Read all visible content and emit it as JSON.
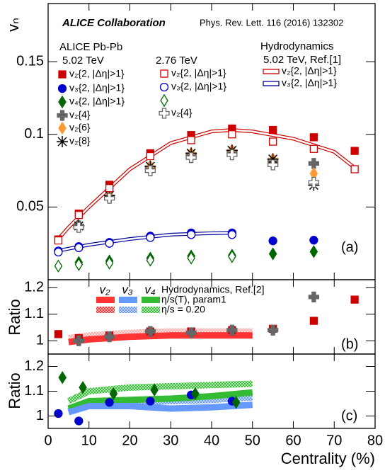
{
  "chart_data": [
    {
      "type": "scatter",
      "ylabel": "vₙ",
      "annotations": [
        "ALICE Collaboration",
        "Phys. Rev. Lett. 116 (2016) 132302",
        "ALICE Pb-Pb",
        "5.02 TeV",
        "2.76 TeV",
        "Hydrodynamics",
        "5.02 TeV, Ref.[1]",
        "(a)"
      ],
      "xlim": [
        0,
        80
      ],
      "xticks": [
        0,
        10,
        20,
        30,
        40,
        50,
        60,
        70,
        80
      ],
      "xtick_labels": false,
      "ylim": [
        0,
        0.19
      ],
      "yticks": [
        0.05,
        0.1,
        0.15
      ],
      "series": [
        {
          "name": "v₂{2, |Δη|>1}",
          "color": "#cc0000",
          "marker": "square",
          "filled": true,
          "x": [
            2.5,
            7.5,
            15,
            25,
            35,
            45,
            55,
            65,
            75
          ],
          "values": [
            0.0277,
            0.0455,
            0.0653,
            0.087,
            0.0995,
            0.104,
            0.103,
            0.098,
            0.0886
          ]
        },
        {
          "name": "v₃{2, |Δη|>1}",
          "color": "#0000cc",
          "marker": "circle",
          "filled": true,
          "x": [
            2.5,
            7.5,
            15,
            25,
            35,
            45,
            55,
            65
          ],
          "values": [
            0.0198,
            0.0228,
            0.0257,
            0.03,
            0.0322,
            0.0322,
            0.0267,
            0.0272
          ]
        },
        {
          "name": "v₄{2, |Δη|>1}",
          "color": "#006600",
          "marker": "diamond",
          "filled": true,
          "x": [
            7.5,
            15,
            25,
            35,
            45,
            55,
            65
          ],
          "values": [
            0.0119,
            0.0129,
            0.0148,
            0.0163,
            0.0168,
            0.0178,
            0.0193
          ]
        },
        {
          "name": "v₂{4}",
          "color": "#666666",
          "marker": "cross",
          "filled": true,
          "x": [
            7.5,
            15,
            25,
            35,
            45,
            55,
            65
          ],
          "values": [
            0.037,
            0.057,
            0.077,
            0.086,
            0.088,
            0.082,
            0.08
          ]
        },
        {
          "name": "v₂{6}",
          "color": "#ff9933",
          "marker": "diamond",
          "filled": true,
          "x": [
            15,
            25,
            35,
            45,
            55,
            65
          ],
          "values": [
            0.058,
            0.078,
            0.087,
            0.089,
            0.083,
            0.073
          ]
        },
        {
          "name": "v₂{8}",
          "color": "#000000",
          "marker": "star",
          "filled": true,
          "x": [
            7.5,
            15,
            25,
            35,
            45,
            55,
            65
          ],
          "values": [
            0.037,
            0.058,
            0.078,
            0.087,
            0.089,
            0.083,
            0.065
          ]
        },
        {
          "name": "v₂{2, |Δη|>1}",
          "color": "#cc0000",
          "marker": "square",
          "filled": false,
          "x": [
            2.5,
            7.5,
            15,
            25,
            35,
            45,
            55,
            65,
            75
          ],
          "values": [
            0.027,
            0.0445,
            0.063,
            0.085,
            0.096,
            0.1,
            0.095,
            0.09,
            0.076
          ]
        },
        {
          "name": "v₃{2, |Δη|>1}",
          "color": "#0000cc",
          "marker": "circle",
          "filled": false,
          "x": [
            2.5,
            7.5,
            15,
            25,
            35,
            45
          ],
          "values": [
            0.019,
            0.022,
            0.025,
            0.029,
            0.031,
            0.031
          ]
        },
        {
          "color": "#006600",
          "marker": "diamond",
          "filled": false,
          "x": [
            2.5,
            7.5,
            15,
            25,
            35,
            45
          ],
          "values": [
            0.0094,
            0.0104,
            0.0114,
            0.0134,
            0.0149,
            0.0159
          ]
        },
        {
          "name": "v₂{4}",
          "color": "#666666",
          "marker": "cross",
          "filled": false,
          "x": [
            7.5,
            15,
            25,
            35,
            45,
            55,
            65
          ],
          "values": [
            0.036,
            0.056,
            0.075,
            0.084,
            0.086,
            0.079,
            0.067
          ]
        },
        {
          "name": "v₂{2, |Δη|>1}",
          "color": "#cc0000",
          "style": "double-line",
          "x": [
            2.5,
            5,
            10,
            20,
            30,
            40,
            45,
            50,
            60,
            70,
            75
          ],
          "values": [
            0.028,
            0.036,
            0.05,
            0.076,
            0.094,
            0.102,
            0.103,
            0.102,
            0.097,
            0.088,
            0.077
          ]
        },
        {
          "name": "v₃{2, |Δη|>1}",
          "color": "#000099",
          "style": "double-line",
          "x": [
            2.5,
            10,
            20,
            30,
            40,
            45
          ],
          "values": [
            0.02,
            0.024,
            0.028,
            0.031,
            0.032,
            0.0322
          ]
        }
      ]
    },
    {
      "type": "scatter",
      "ylabel": "Ratio",
      "annotations": [
        "(b)"
      ],
      "legend": {
        "title": "Hydrodynamics, Ref.[2]",
        "columns": [
          {
            "label": "v₂",
            "color": "#ff3333"
          },
          {
            "label": "v₃",
            "color": "#6699ff"
          },
          {
            "label": "v₄",
            "color": "#33bb33"
          }
        ],
        "rows": [
          "η/s(T), param1",
          "η/s = 0.20"
        ]
      },
      "xlim": [
        0,
        80
      ],
      "xticks": [
        0,
        10,
        20,
        30,
        40,
        50,
        60,
        70,
        80
      ],
      "xtick_labels": false,
      "ylim": [
        0.95,
        1.23
      ],
      "yticks": [
        1,
        1.1,
        1.2
      ],
      "series": [
        {
          "color": "#ffaaaa",
          "style": "hatched-band",
          "x": [
            5,
            10,
            20,
            30,
            40,
            50
          ],
          "values": [
            1.01,
            1.02,
            1.03,
            1.035,
            1.035,
            1.035
          ]
        },
        {
          "color": "#ff3333",
          "style": "band",
          "x": [
            5,
            10,
            20,
            30,
            40,
            50
          ],
          "values": [
            0.995,
            1.005,
            1.015,
            1.02,
            1.02,
            1.02
          ]
        },
        {
          "color": "#cc0000",
          "marker": "square",
          "filled": true,
          "x": [
            2.5,
            7.5,
            15,
            25,
            35,
            45,
            55,
            65,
            75
          ],
          "values": [
            1.025,
            1.01,
            1.02,
            1.035,
            1.035,
            1.04,
            1.045,
            1.075,
            1.155
          ]
        },
        {
          "color": "#666666",
          "marker": "cross",
          "filled": true,
          "x": [
            7.5,
            15,
            25,
            35,
            45,
            55,
            65
          ],
          "values": [
            1.0,
            1.015,
            1.035,
            1.03,
            1.04,
            1.04,
            1.165
          ]
        }
      ]
    },
    {
      "type": "scatter",
      "ylabel": "Ratio",
      "xlabel": "Centrality (%)",
      "annotations": [
        "(c)"
      ],
      "xlim": [
        0,
        80
      ],
      "xticks": [
        0,
        10,
        20,
        30,
        40,
        50,
        60,
        70,
        80
      ],
      "xtick_labels": true,
      "ylim": [
        0.95,
        1.25
      ],
      "yticks": [
        1,
        1.1,
        1.2
      ],
      "series": [
        {
          "color": "#33bb33",
          "style": "hatched-band",
          "x": [
            5,
            10,
            20,
            30,
            40,
            50
          ],
          "values": [
            1.06,
            1.1,
            1.115,
            1.12,
            1.125,
            1.13
          ]
        },
        {
          "color": "#6699ff",
          "style": "hatched-band",
          "x": [
            5,
            10,
            20,
            30,
            40,
            50
          ],
          "values": [
            1.02,
            1.05,
            1.055,
            1.06,
            1.065,
            1.075
          ]
        },
        {
          "color": "#33bb33",
          "style": "band",
          "x": [
            5,
            10,
            20,
            30,
            40,
            50
          ],
          "values": [
            1.03,
            1.06,
            1.065,
            1.07,
            1.08,
            1.095
          ]
        },
        {
          "color": "#6699ff",
          "style": "band",
          "x": [
            5,
            10,
            20,
            30,
            40,
            50
          ],
          "values": [
            1.015,
            1.04,
            1.04,
            1.03,
            1.035,
            1.045
          ]
        },
        {
          "color": "#0000cc",
          "marker": "circle",
          "filled": true,
          "x": [
            2.5,
            7.5,
            15,
            25,
            35,
            45
          ],
          "values": [
            1.01,
            0.98,
            1.055,
            1.06,
            1.085,
            1.06
          ]
        },
        {
          "color": "#006600",
          "marker": "diamond",
          "filled": true,
          "x": [
            3.5,
            8.5,
            16,
            26,
            36,
            46
          ],
          "values": [
            1.155,
            1.115,
            1.09,
            1.105,
            1.09,
            1.055
          ]
        }
      ]
    }
  ]
}
